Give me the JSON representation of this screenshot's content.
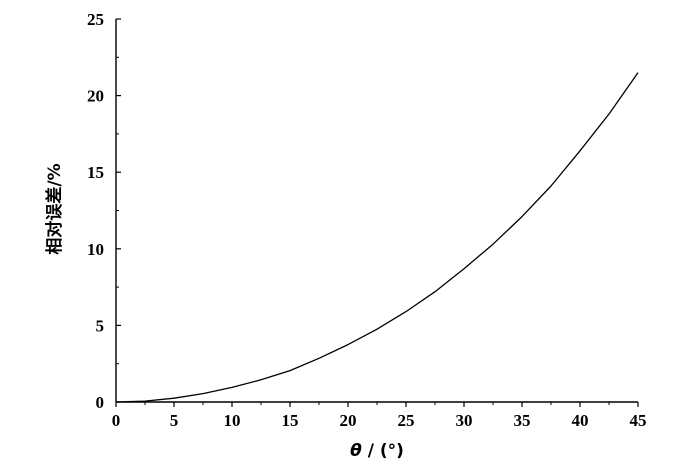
{
  "chart_data": {
    "type": "line",
    "title": "",
    "xlabel_parts": {
      "symbol": "θ",
      "unit": " / (°)"
    },
    "ylabel": "相对误差/%",
    "xlim": [
      0,
      45
    ],
    "ylim": [
      0,
      25
    ],
    "xticks": [
      0,
      5,
      10,
      15,
      20,
      25,
      30,
      35,
      40,
      45
    ],
    "yticks": [
      0,
      5,
      10,
      15,
      20,
      25
    ],
    "grid": false,
    "legend": "none",
    "line_color": "#000000",
    "series": [
      {
        "x": [
          0,
          2.5,
          5,
          7.5,
          10,
          12.5,
          15,
          17.5,
          20,
          22.5,
          25,
          27.5,
          30,
          32.5,
          35,
          37.5,
          40,
          42.5,
          45
        ],
        "values": [
          0,
          0.06,
          0.25,
          0.55,
          0.95,
          1.45,
          2.05,
          2.85,
          3.75,
          4.75,
          5.9,
          7.2,
          8.7,
          10.3,
          12.1,
          14.1,
          16.4,
          18.8,
          21.5
        ]
      }
    ]
  }
}
